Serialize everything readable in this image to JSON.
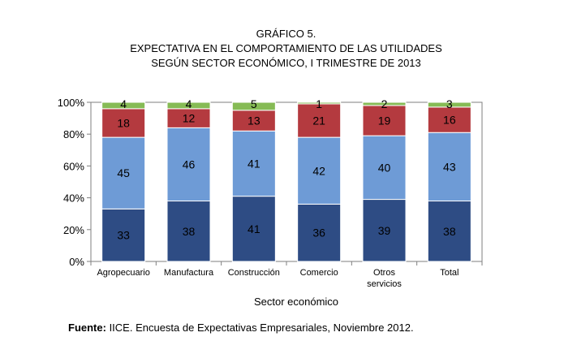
{
  "chart_data": {
    "type": "bar",
    "stacked": true,
    "title_lines": [
      "GRÁFICO 5.",
      "EXPECTATIVA EN EL COMPORTAMIENTO DE LAS UTILIDADES",
      "SEGÚN SECTOR ECONÓMICO,  I TRIMESTRE DE 2013"
    ],
    "xlabel": "Sector económico",
    "ylabel": "",
    "ylim": [
      0,
      100
    ],
    "yticks": [
      "0%",
      "20%",
      "40%",
      "60%",
      "80%",
      "100%"
    ],
    "categories": [
      [
        "Agropecuario"
      ],
      [
        "Manufactura"
      ],
      [
        "Construcción"
      ],
      [
        "Comercio"
      ],
      [
        "Otros",
        "servicios"
      ],
      [
        "Total"
      ]
    ],
    "series": [
      {
        "color": "#2e4c84",
        "values": [
          33,
          38,
          41,
          36,
          39,
          38
        ]
      },
      {
        "color": "#6e9bd6",
        "values": [
          45,
          46,
          41,
          42,
          40,
          43
        ]
      },
      {
        "color": "#b43a3f",
        "values": [
          18,
          12,
          13,
          21,
          19,
          16
        ]
      },
      {
        "color": "#86bb55",
        "values": [
          4,
          4,
          5,
          1,
          2,
          3
        ]
      }
    ],
    "grid": false,
    "legend": "none"
  },
  "source": {
    "label": "Fuente:",
    "text": " IICE. Encuesta de Expectativas Empresariales, Noviembre 2012."
  }
}
